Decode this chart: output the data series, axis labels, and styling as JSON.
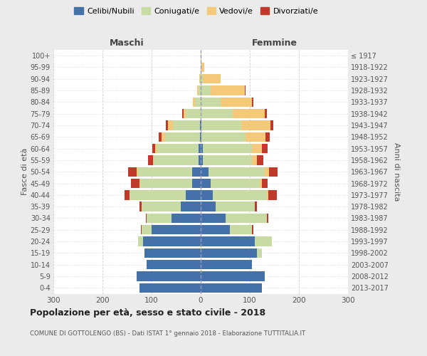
{
  "age_groups": [
    "0-4",
    "5-9",
    "10-14",
    "15-19",
    "20-24",
    "25-29",
    "30-34",
    "35-39",
    "40-44",
    "45-49",
    "50-54",
    "55-59",
    "60-64",
    "65-69",
    "70-74",
    "75-79",
    "80-84",
    "85-89",
    "90-94",
    "95-99",
    "100+"
  ],
  "birth_years": [
    "2013-2017",
    "2008-2012",
    "2003-2007",
    "1998-2002",
    "1993-1997",
    "1988-1992",
    "1983-1987",
    "1978-1982",
    "1973-1977",
    "1968-1972",
    "1963-1967",
    "1958-1962",
    "1953-1957",
    "1948-1952",
    "1943-1947",
    "1938-1942",
    "1933-1937",
    "1928-1932",
    "1923-1927",
    "1918-1922",
    "≤ 1917"
  ],
  "males_celibi": [
    125,
    130,
    110,
    115,
    118,
    100,
    60,
    40,
    30,
    18,
    18,
    5,
    4,
    2,
    2,
    0,
    0,
    0,
    0,
    0,
    0
  ],
  "males_coniugati": [
    0,
    0,
    0,
    0,
    10,
    20,
    50,
    80,
    115,
    105,
    110,
    90,
    85,
    70,
    55,
    30,
    12,
    5,
    2,
    0,
    0
  ],
  "males_vedovi": [
    0,
    0,
    0,
    0,
    0,
    0,
    0,
    0,
    0,
    1,
    2,
    2,
    4,
    8,
    10,
    5,
    4,
    2,
    1,
    0,
    0
  ],
  "males_divorziati": [
    0,
    0,
    0,
    0,
    0,
    2,
    2,
    5,
    10,
    18,
    18,
    10,
    6,
    5,
    4,
    2,
    0,
    0,
    0,
    0,
    0
  ],
  "females_nubili": [
    125,
    130,
    105,
    115,
    110,
    60,
    50,
    30,
    25,
    20,
    16,
    5,
    4,
    2,
    2,
    0,
    0,
    0,
    0,
    0,
    0
  ],
  "females_coniugate": [
    0,
    0,
    0,
    10,
    35,
    45,
    85,
    80,
    110,
    100,
    115,
    100,
    100,
    90,
    80,
    65,
    40,
    20,
    5,
    2,
    0
  ],
  "females_vedove": [
    0,
    0,
    0,
    0,
    0,
    0,
    0,
    0,
    2,
    4,
    8,
    10,
    20,
    40,
    60,
    65,
    65,
    70,
    35,
    5,
    2
  ],
  "females_divorziate": [
    0,
    0,
    0,
    0,
    0,
    2,
    2,
    5,
    18,
    12,
    18,
    12,
    12,
    8,
    6,
    5,
    2,
    2,
    0,
    0,
    0
  ],
  "colors_celibi": "#4472a8",
  "colors_coniugati": "#c8dba4",
  "colors_vedovi": "#f5c97a",
  "colors_divorziati": "#c0392b",
  "xlim": 300,
  "title": "Popolazione per età, sesso e stato civile - 2018",
  "subtitle": "COMUNE DI GOTTOLENGO (BS) - Dati ISTAT 1° gennaio 2018 - Elaborazione TUTTITALIA.IT",
  "ylabel_left": "Fasce di età",
  "ylabel_right": "Anni di nascita",
  "label_maschi": "Maschi",
  "label_femmine": "Femmine",
  "bg_color": "#ebebeb",
  "plot_bg": "#ffffff",
  "legend_labels": [
    "Celibi/Nubili",
    "Coniugati/e",
    "Vedovi/e",
    "Divorziati/e"
  ]
}
